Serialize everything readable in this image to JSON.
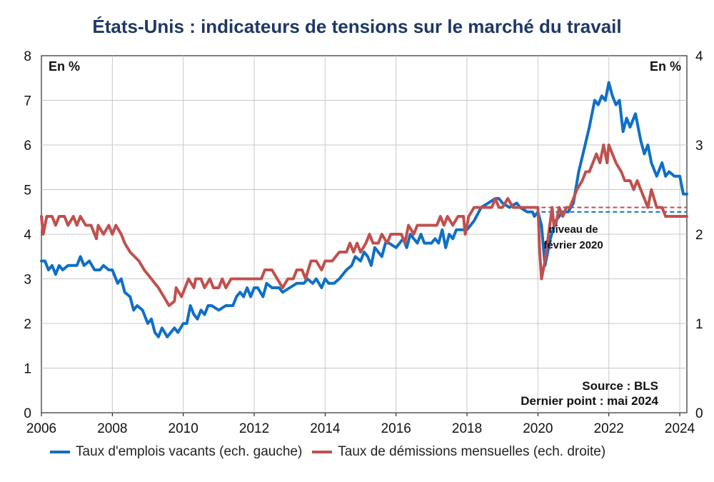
{
  "chart_data": {
    "type": "line",
    "title": "États-Unis : indicateurs de tensions sur le marché du travail",
    "y_left_unit": "En %",
    "y_right_unit": "En %",
    "ylim_left": [
      0,
      8
    ],
    "ylim_right": [
      0,
      4
    ],
    "xlim": [
      2006,
      2024.2
    ],
    "x_ticks": [
      "2006",
      "2008",
      "2010",
      "2012",
      "2014",
      "2016",
      "2018",
      "2020",
      "2022",
      "2024"
    ],
    "y_left_ticks": [
      "0",
      "1",
      "2",
      "3",
      "4",
      "5",
      "6",
      "7",
      "8"
    ],
    "y_right_ticks": [
      "0",
      "1",
      "2",
      "3",
      "4"
    ],
    "grid": true,
    "legend_position": "bottom",
    "annotation": [
      "niveau de",
      "février 2020"
    ],
    "source": "Source : BLS",
    "last_point": "Dernier point : mai 2024",
    "series": [
      {
        "name": "Taux d'emplois vacants (ech. gauche)",
        "axis": "left",
        "color": "#0f6fc6",
        "points": [
          [
            2006,
            3.4
          ],
          [
            2006.1,
            3.4
          ],
          [
            2006.2,
            3.2
          ],
          [
            2006.3,
            3.3
          ],
          [
            2006.4,
            3.1
          ],
          [
            2006.5,
            3.3
          ],
          [
            2006.6,
            3.2
          ],
          [
            2006.75,
            3.3
          ],
          [
            2007,
            3.3
          ],
          [
            2007.1,
            3.5
          ],
          [
            2007.2,
            3.3
          ],
          [
            2007.35,
            3.4
          ],
          [
            2007.5,
            3.2
          ],
          [
            2007.65,
            3.2
          ],
          [
            2007.75,
            3.3
          ],
          [
            2007.9,
            3.2
          ],
          [
            2008,
            3.2
          ],
          [
            2008.15,
            2.9
          ],
          [
            2008.25,
            3.0
          ],
          [
            2008.35,
            2.7
          ],
          [
            2008.5,
            2.6
          ],
          [
            2008.6,
            2.3
          ],
          [
            2008.7,
            2.4
          ],
          [
            2008.85,
            2.3
          ],
          [
            2009,
            2.0
          ],
          [
            2009.1,
            2.1
          ],
          [
            2009.2,
            1.8
          ],
          [
            2009.3,
            1.7
          ],
          [
            2009.4,
            1.9
          ],
          [
            2009.55,
            1.7
          ],
          [
            2009.75,
            1.9
          ],
          [
            2009.85,
            1.8
          ],
          [
            2010,
            2.0
          ],
          [
            2010.1,
            2.0
          ],
          [
            2010.2,
            2.4
          ],
          [
            2010.3,
            2.2
          ],
          [
            2010.4,
            2.1
          ],
          [
            2010.5,
            2.3
          ],
          [
            2010.6,
            2.2
          ],
          [
            2010.7,
            2.4
          ],
          [
            2010.8,
            2.4
          ],
          [
            2011,
            2.3
          ],
          [
            2011.2,
            2.4
          ],
          [
            2011.4,
            2.4
          ],
          [
            2011.5,
            2.6
          ],
          [
            2011.6,
            2.7
          ],
          [
            2011.7,
            2.6
          ],
          [
            2011.8,
            2.8
          ],
          [
            2011.9,
            2.6
          ],
          [
            2012,
            2.8
          ],
          [
            2012.1,
            2.8
          ],
          [
            2012.25,
            2.6
          ],
          [
            2012.35,
            2.9
          ],
          [
            2012.5,
            2.8
          ],
          [
            2012.7,
            2.8
          ],
          [
            2012.8,
            2.7
          ],
          [
            2013,
            2.8
          ],
          [
            2013.2,
            2.9
          ],
          [
            2013.4,
            2.9
          ],
          [
            2013.5,
            3.0
          ],
          [
            2013.65,
            2.9
          ],
          [
            2013.75,
            3.0
          ],
          [
            2013.9,
            2.8
          ],
          [
            2014,
            3.0
          ],
          [
            2014.1,
            2.9
          ],
          [
            2014.25,
            2.9
          ],
          [
            2014.4,
            3.0
          ],
          [
            2014.5,
            3.1
          ],
          [
            2014.6,
            3.2
          ],
          [
            2014.75,
            3.3
          ],
          [
            2014.85,
            3.5
          ],
          [
            2015,
            3.4
          ],
          [
            2015.1,
            3.6
          ],
          [
            2015.2,
            3.5
          ],
          [
            2015.3,
            3.3
          ],
          [
            2015.4,
            3.7
          ],
          [
            2015.5,
            3.6
          ],
          [
            2015.6,
            3.5
          ],
          [
            2015.7,
            3.8
          ],
          [
            2015.8,
            3.8
          ],
          [
            2016,
            3.7
          ],
          [
            2016.1,
            3.8
          ],
          [
            2016.2,
            3.9
          ],
          [
            2016.3,
            3.7
          ],
          [
            2016.4,
            4.0
          ],
          [
            2016.5,
            3.9
          ],
          [
            2016.6,
            3.8
          ],
          [
            2016.7,
            4.0
          ],
          [
            2016.8,
            3.8
          ],
          [
            2017,
            3.8
          ],
          [
            2017.1,
            3.9
          ],
          [
            2017.2,
            3.8
          ],
          [
            2017.3,
            4.1
          ],
          [
            2017.4,
            3.7
          ],
          [
            2017.5,
            4.0
          ],
          [
            2017.6,
            3.9
          ],
          [
            2017.7,
            4.1
          ],
          [
            2017.8,
            4.1
          ],
          [
            2018,
            4.1
          ],
          [
            2018.2,
            4.3
          ],
          [
            2018.4,
            4.6
          ],
          [
            2018.6,
            4.7
          ],
          [
            2018.8,
            4.8
          ],
          [
            2018.9,
            4.8
          ],
          [
            2019,
            4.7
          ],
          [
            2019.2,
            4.6
          ],
          [
            2019.4,
            4.7
          ],
          [
            2019.5,
            4.6
          ],
          [
            2019.7,
            4.5
          ],
          [
            2019.85,
            4.5
          ],
          [
            2019.9,
            4.4
          ],
          [
            2020,
            4.5
          ],
          [
            2020.1,
            4.2
          ],
          [
            2020.2,
            3.3
          ],
          [
            2020.35,
            3.9
          ],
          [
            2020.5,
            4.3
          ],
          [
            2020.7,
            4.5
          ],
          [
            2020.85,
            4.5
          ],
          [
            2021,
            4.7
          ],
          [
            2021.15,
            5.4
          ],
          [
            2021.3,
            5.9
          ],
          [
            2021.45,
            6.4
          ],
          [
            2021.6,
            7.0
          ],
          [
            2021.7,
            6.9
          ],
          [
            2021.8,
            7.1
          ],
          [
            2021.9,
            7.0
          ],
          [
            2022,
            7.4
          ],
          [
            2022.1,
            7.1
          ],
          [
            2022.2,
            6.9
          ],
          [
            2022.3,
            7.0
          ],
          [
            2022.4,
            6.3
          ],
          [
            2022.5,
            6.6
          ],
          [
            2022.6,
            6.4
          ],
          [
            2022.75,
            6.7
          ],
          [
            2022.9,
            6.1
          ],
          [
            2023,
            5.8
          ],
          [
            2023.1,
            6.0
          ],
          [
            2023.2,
            5.6
          ],
          [
            2023.35,
            5.3
          ],
          [
            2023.5,
            5.6
          ],
          [
            2023.6,
            5.3
          ],
          [
            2023.7,
            5.4
          ],
          [
            2023.85,
            5.3
          ],
          [
            2024,
            5.3
          ],
          [
            2024.1,
            4.9
          ],
          [
            2024.2,
            4.9
          ]
        ]
      },
      {
        "name": "Taux de démissions mensuelles (ech. droite)",
        "axis": "right",
        "color": "#c0504d",
        "points": [
          [
            2006,
            2.2
          ],
          [
            2006.05,
            2.0
          ],
          [
            2006.15,
            2.2
          ],
          [
            2006.3,
            2.2
          ],
          [
            2006.4,
            2.1
          ],
          [
            2006.5,
            2.2
          ],
          [
            2006.65,
            2.2
          ],
          [
            2006.75,
            2.1
          ],
          [
            2006.9,
            2.2
          ],
          [
            2007,
            2.1
          ],
          [
            2007.1,
            2.2
          ],
          [
            2007.25,
            2.1
          ],
          [
            2007.4,
            2.1
          ],
          [
            2007.55,
            1.95
          ],
          [
            2007.6,
            2.1
          ],
          [
            2007.75,
            2.0
          ],
          [
            2007.9,
            2.1
          ],
          [
            2008,
            2.0
          ],
          [
            2008.1,
            2.1
          ],
          [
            2008.25,
            2.0
          ],
          [
            2008.35,
            1.9
          ],
          [
            2008.5,
            1.8
          ],
          [
            2008.75,
            1.7
          ],
          [
            2008.9,
            1.6
          ],
          [
            2009.1,
            1.5
          ],
          [
            2009.3,
            1.4
          ],
          [
            2009.45,
            1.3
          ],
          [
            2009.6,
            1.2
          ],
          [
            2009.75,
            1.25
          ],
          [
            2009.8,
            1.4
          ],
          [
            2009.95,
            1.3
          ],
          [
            2010.05,
            1.4
          ],
          [
            2010.15,
            1.5
          ],
          [
            2010.3,
            1.4
          ],
          [
            2010.35,
            1.5
          ],
          [
            2010.5,
            1.5
          ],
          [
            2010.6,
            1.4
          ],
          [
            2010.75,
            1.5
          ],
          [
            2010.85,
            1.4
          ],
          [
            2011,
            1.4
          ],
          [
            2011.1,
            1.5
          ],
          [
            2011.2,
            1.4
          ],
          [
            2011.35,
            1.5
          ],
          [
            2011.5,
            1.5
          ],
          [
            2011.75,
            1.5
          ],
          [
            2011.9,
            1.5
          ],
          [
            2012,
            1.5
          ],
          [
            2012.2,
            1.5
          ],
          [
            2012.3,
            1.6
          ],
          [
            2012.5,
            1.6
          ],
          [
            2012.65,
            1.5
          ],
          [
            2012.8,
            1.4
          ],
          [
            2012.95,
            1.5
          ],
          [
            2013.1,
            1.5
          ],
          [
            2013.2,
            1.6
          ],
          [
            2013.35,
            1.6
          ],
          [
            2013.45,
            1.5
          ],
          [
            2013.6,
            1.7
          ],
          [
            2013.75,
            1.7
          ],
          [
            2013.9,
            1.6
          ],
          [
            2014,
            1.7
          ],
          [
            2014.2,
            1.7
          ],
          [
            2014.4,
            1.8
          ],
          [
            2014.6,
            1.8
          ],
          [
            2014.7,
            1.9
          ],
          [
            2014.8,
            1.8
          ],
          [
            2014.9,
            1.9
          ],
          [
            2015,
            1.8
          ],
          [
            2015.15,
            1.9
          ],
          [
            2015.25,
            2.0
          ],
          [
            2015.35,
            1.9
          ],
          [
            2015.5,
            1.9
          ],
          [
            2015.6,
            2.0
          ],
          [
            2015.75,
            1.9
          ],
          [
            2015.85,
            2.0
          ],
          [
            2016,
            2.0
          ],
          [
            2016.15,
            2.0
          ],
          [
            2016.25,
            1.9
          ],
          [
            2016.35,
            2.1
          ],
          [
            2016.5,
            2.0
          ],
          [
            2016.6,
            2.1
          ],
          [
            2016.8,
            2.1
          ],
          [
            2017,
            2.1
          ],
          [
            2017.15,
            2.1
          ],
          [
            2017.25,
            2.2
          ],
          [
            2017.35,
            2.1
          ],
          [
            2017.45,
            2.2
          ],
          [
            2017.6,
            2.1
          ],
          [
            2017.75,
            2.2
          ],
          [
            2017.9,
            2.2
          ],
          [
            2017.95,
            2.0
          ],
          [
            2018.05,
            2.2
          ],
          [
            2018.2,
            2.3
          ],
          [
            2018.4,
            2.3
          ],
          [
            2018.55,
            2.3
          ],
          [
            2018.7,
            2.3
          ],
          [
            2018.8,
            2.4
          ],
          [
            2018.9,
            2.3
          ],
          [
            2019,
            2.3
          ],
          [
            2019.15,
            2.4
          ],
          [
            2019.3,
            2.3
          ],
          [
            2019.45,
            2.3
          ],
          [
            2019.6,
            2.3
          ],
          [
            2019.75,
            2.3
          ],
          [
            2019.9,
            2.3
          ],
          [
            2020,
            2.3
          ],
          [
            2020.05,
            1.8
          ],
          [
            2020.1,
            1.5
          ],
          [
            2020.2,
            1.7
          ],
          [
            2020.3,
            2.0
          ],
          [
            2020.4,
            2.3
          ],
          [
            2020.45,
            2.1
          ],
          [
            2020.5,
            2.1
          ],
          [
            2020.6,
            2.3
          ],
          [
            2020.7,
            2.2
          ],
          [
            2020.8,
            2.3
          ],
          [
            2020.9,
            2.3
          ],
          [
            2021,
            2.4
          ],
          [
            2021.1,
            2.5
          ],
          [
            2021.25,
            2.6
          ],
          [
            2021.35,
            2.7
          ],
          [
            2021.45,
            2.7
          ],
          [
            2021.55,
            2.8
          ],
          [
            2021.65,
            2.9
          ],
          [
            2021.75,
            2.8
          ],
          [
            2021.85,
            3.0
          ],
          [
            2021.95,
            2.8
          ],
          [
            2022,
            3.0
          ],
          [
            2022.1,
            2.9
          ],
          [
            2022.2,
            2.8
          ],
          [
            2022.35,
            2.7
          ],
          [
            2022.45,
            2.6
          ],
          [
            2022.6,
            2.6
          ],
          [
            2022.7,
            2.5
          ],
          [
            2022.8,
            2.6
          ],
          [
            2022.9,
            2.5
          ],
          [
            2023,
            2.4
          ],
          [
            2023.1,
            2.3
          ],
          [
            2023.2,
            2.5
          ],
          [
            2023.35,
            2.3
          ],
          [
            2023.5,
            2.3
          ],
          [
            2023.6,
            2.2
          ],
          [
            2023.8,
            2.2
          ],
          [
            2024,
            2.2
          ],
          [
            2024.2,
            2.2
          ]
        ]
      }
    ],
    "reference_lines": [
      {
        "axis": "left",
        "value": 4.5,
        "from": 2020.1,
        "to": 2024.2,
        "color": "#0f6fc6"
      },
      {
        "axis": "right",
        "value": 2.3,
        "from": 2019.9,
        "to": 2024.2,
        "color": "#c0504d"
      }
    ]
  }
}
